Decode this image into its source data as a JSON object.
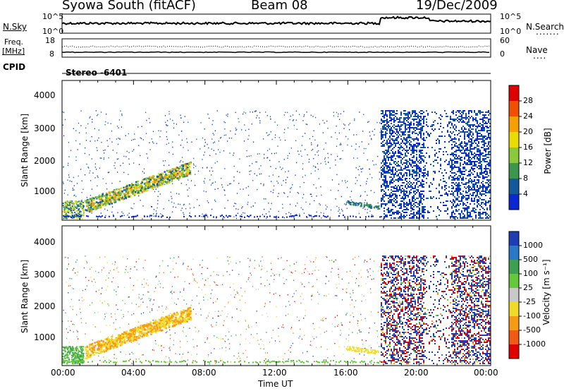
{
  "header": {
    "station": "Syowa South (fitACF)",
    "beam": "Beam 08",
    "date": "19/Dec/2009"
  },
  "left_labels": {
    "nsky": "N.Sky",
    "freq_a": "Freq.",
    "freq_b": "[MHz]",
    "cpid": "CPID"
  },
  "right_labels": {
    "nsearch": "N.Search",
    "nsearch_dots": ".......",
    "nave": "Nave",
    "nave_dots": "...."
  },
  "mode": "Stereo -6401",
  "chart_data": [
    {
      "type": "line",
      "panel": "noise",
      "y_ticks_left": [
        "10^5",
        "10^0"
      ],
      "y_ticks_right": [
        "10^5",
        "10^0"
      ]
    },
    {
      "type": "line",
      "panel": "frequency-nave",
      "y_ticks_left": [
        "18",
        "8"
      ],
      "y_ticks_right": [
        "60",
        "0"
      ]
    },
    {
      "type": "heatmap",
      "panel": "power",
      "ylabel": "Slant Range [km]",
      "ylim": [
        180,
        4560
      ],
      "y_ticks": [
        "4000",
        "3000",
        "2000",
        "1000"
      ],
      "colorbar": {
        "label": "Power [dB]",
        "ticks": [
          "28",
          "24",
          "20",
          "16",
          "12",
          "8",
          "4"
        ],
        "colors": [
          "#e00000",
          "#f05000",
          "#f5a000",
          "#e8dc00",
          "#8cc83c",
          "#3c9650",
          "#145a9b",
          "#0a28d2"
        ]
      }
    },
    {
      "type": "heatmap",
      "panel": "velocity",
      "ylabel": "Slant Range [km]",
      "ylim": [
        180,
        4560
      ],
      "y_ticks": [
        "4000",
        "3000",
        "2000",
        "1000"
      ],
      "colorbar": {
        "label": "Velocity [m s⁻¹]",
        "ticks": [
          "1000",
          "500",
          "100",
          "25",
          "-25",
          "-100",
          "-500",
          "-1000"
        ],
        "colors": [
          "#1e3cb4",
          "#2a78c8",
          "#3ca050",
          "#64c83c",
          "#c8c8c8",
          "#f0dc28",
          "#f59b14",
          "#f05a14",
          "#e00000"
        ]
      }
    }
  ],
  "x_axis": {
    "label": "Time UT",
    "ticks": [
      "00:00",
      "04:00",
      "08:00",
      "12:00",
      "16:00",
      "20:00",
      "00:00"
    ]
  }
}
